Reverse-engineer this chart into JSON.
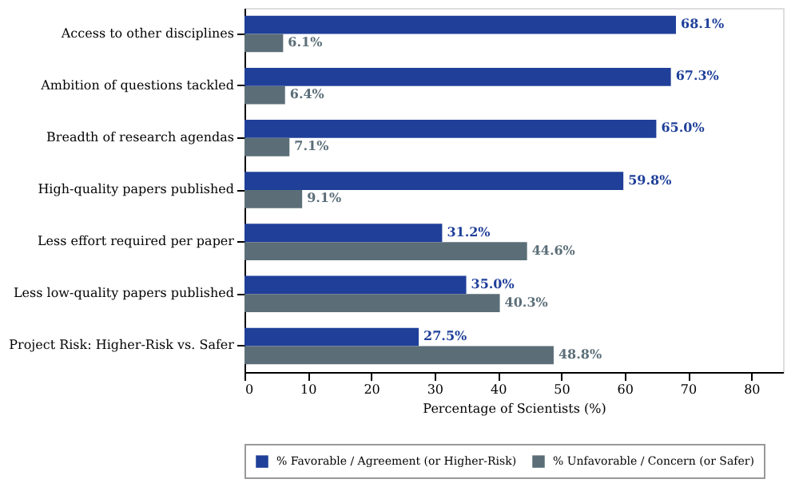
{
  "chart_data": {
    "type": "bar",
    "orientation": "horizontal",
    "xlabel": "Percentage of Scientists (%)",
    "categories": [
      "Access to other disciplines",
      "Ambition of questions tackled",
      "Breadth of research agendas",
      "High-quality papers published",
      "Less effort required per paper",
      "Less low-quality papers published",
      "Project Risk: Higher-Risk vs. Safer"
    ],
    "series": [
      {
        "name": "% Favorable / Agreement (or Higher-Risk)",
        "color": "#1f3f99",
        "values": [
          68.1,
          67.3,
          65.0,
          59.8,
          31.2,
          35.0,
          27.5
        ],
        "value_labels": [
          "68.1%",
          "67.3%",
          "65.0%",
          "59.8%",
          "31.2%",
          "35.0%",
          "27.5%"
        ]
      },
      {
        "name": "% Unfavorable / Concern (or Safer)",
        "color": "#5b6e78",
        "values": [
          6.1,
          6.4,
          7.1,
          9.1,
          44.6,
          40.3,
          48.8
        ],
        "value_labels": [
          "6.1%",
          "6.4%",
          "7.1%",
          "9.1%",
          "44.6%",
          "40.3%",
          "48.8%"
        ]
      }
    ],
    "xlim": [
      0,
      85
    ],
    "xticks": [
      0,
      10,
      20,
      30,
      40,
      50,
      60,
      70,
      80
    ],
    "legend": "bottom",
    "grid": false
  }
}
